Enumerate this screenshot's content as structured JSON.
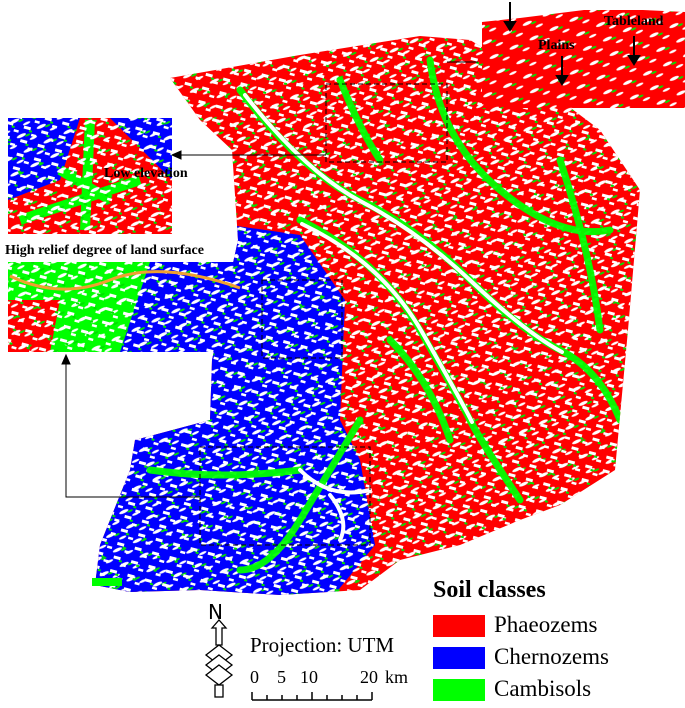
{
  "insets": {
    "top_right": {
      "labels": [
        "Tableland",
        "Plains"
      ]
    },
    "left_top": {
      "label": "Low  elevation"
    },
    "left_middle": {
      "label": "High relief degree of land surface"
    }
  },
  "legend": {
    "title": "Soil classes",
    "items": [
      {
        "label": "Phaeozems",
        "color": "#ff0000"
      },
      {
        "label": "Chernozems",
        "color": "#0000ff"
      },
      {
        "label": "Cambisols",
        "color": "#00ff00"
      }
    ]
  },
  "north_arrow": {
    "label": "N"
  },
  "projection": "Projection: UTM",
  "scale_bar": {
    "ticks": [
      "0",
      "5",
      "10",
      "20"
    ],
    "unit": "km"
  }
}
